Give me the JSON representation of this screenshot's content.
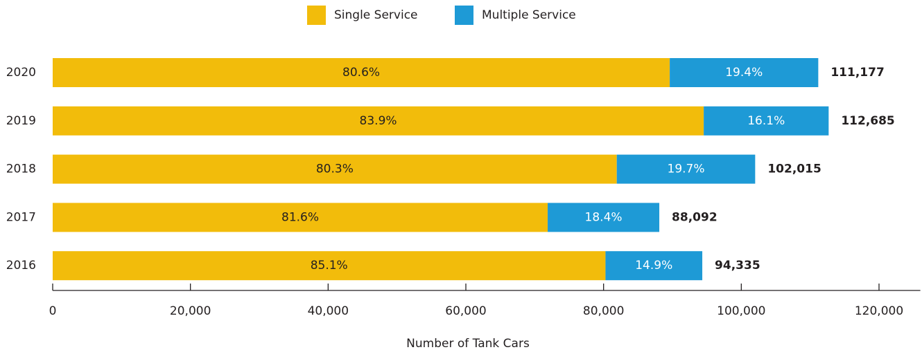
{
  "chart_data": {
    "type": "stacked-hbar",
    "xlabel": "Number of Tank Cars",
    "categories": [
      "2020",
      "2019",
      "2018",
      "2017",
      "2016"
    ],
    "series": [
      {
        "name": "Single Service",
        "color": "#f2bc0b",
        "values": [
          89609,
          94543,
          81918,
          71883,
          80279
        ],
        "value_labels": [
          "80.6%",
          "83.9%",
          "80.3%",
          "81.6%",
          "85.1%"
        ]
      },
      {
        "name": "Multiple Service",
        "color": "#1e9ad6",
        "values": [
          21568,
          18142,
          20097,
          16209,
          14056
        ],
        "value_labels": [
          "19.4%",
          "16.1%",
          "19.7%",
          "18.4%",
          "14.9%"
        ]
      }
    ],
    "totals": [
      111177,
      112685,
      102015,
      88092,
      94335
    ],
    "total_labels": [
      "111,177",
      "112,685",
      "102,015",
      "88,092",
      "94,335"
    ],
    "xlim": [
      0,
      126000
    ],
    "xticks": [
      0,
      {
        "value": 20000,
        "label": "20,000"
      },
      {
        "value": 40000,
        "label": "40,000"
      },
      {
        "value": 60000,
        "label": "60,000"
      },
      {
        "value": 80000,
        "label": "80,000"
      },
      {
        "value": 100000,
        "label": "100,000"
      },
      {
        "value": 120000,
        "label": "120,000"
      }
    ]
  }
}
